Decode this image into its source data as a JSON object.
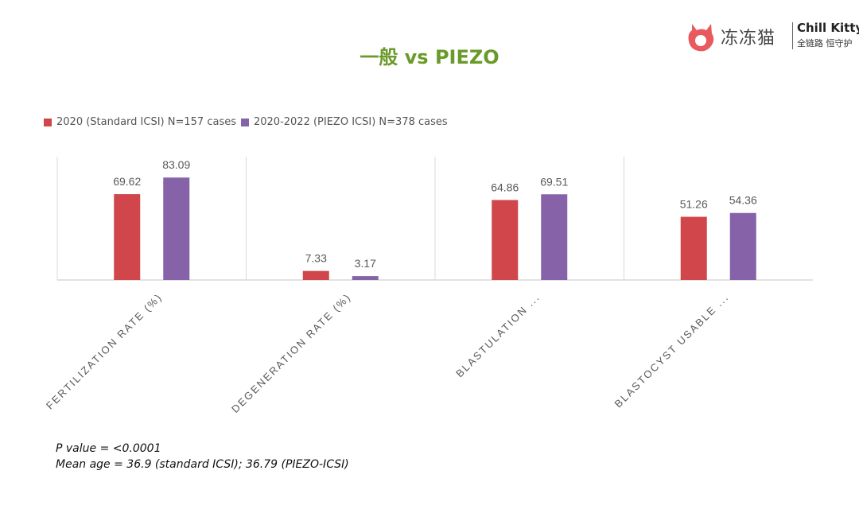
{
  "header": {
    "title": "一般 vs PIEZO",
    "logo_cn": "冻冻猫",
    "logo_en": "Chill Kitty",
    "logo_sub": "全链路 恒守护"
  },
  "colors": {
    "series1": "#d0464a",
    "series2": "#8663a8",
    "axis": "#d9d9d9",
    "label": "#595959"
  },
  "chart_data": {
    "type": "bar",
    "title": "一般 vs PIEZO",
    "categories": [
      "FERTILIZATION RATE (%)",
      "DEGENERATION RATE (%)",
      "BLASTULATION ...",
      "BLASTOCYST USABLE ..."
    ],
    "series": [
      {
        "name": "2020 (Standard ICSI) N=157 cases",
        "values": [
          69.62,
          7.33,
          64.86,
          51.26
        ]
      },
      {
        "name": "2020-2022 (PIEZO ICSI) N=378 cases",
        "values": [
          83.09,
          3.17,
          69.51,
          54.36
        ]
      }
    ],
    "ylim": [
      0,
      100
    ],
    "grid": false,
    "legend": "top-left"
  },
  "notes": {
    "p_value": "P value = <0.0001",
    "mean_age": "Mean age = 36.9 (standard ICSI); 36.79 (PIEZO-ICSI)"
  }
}
